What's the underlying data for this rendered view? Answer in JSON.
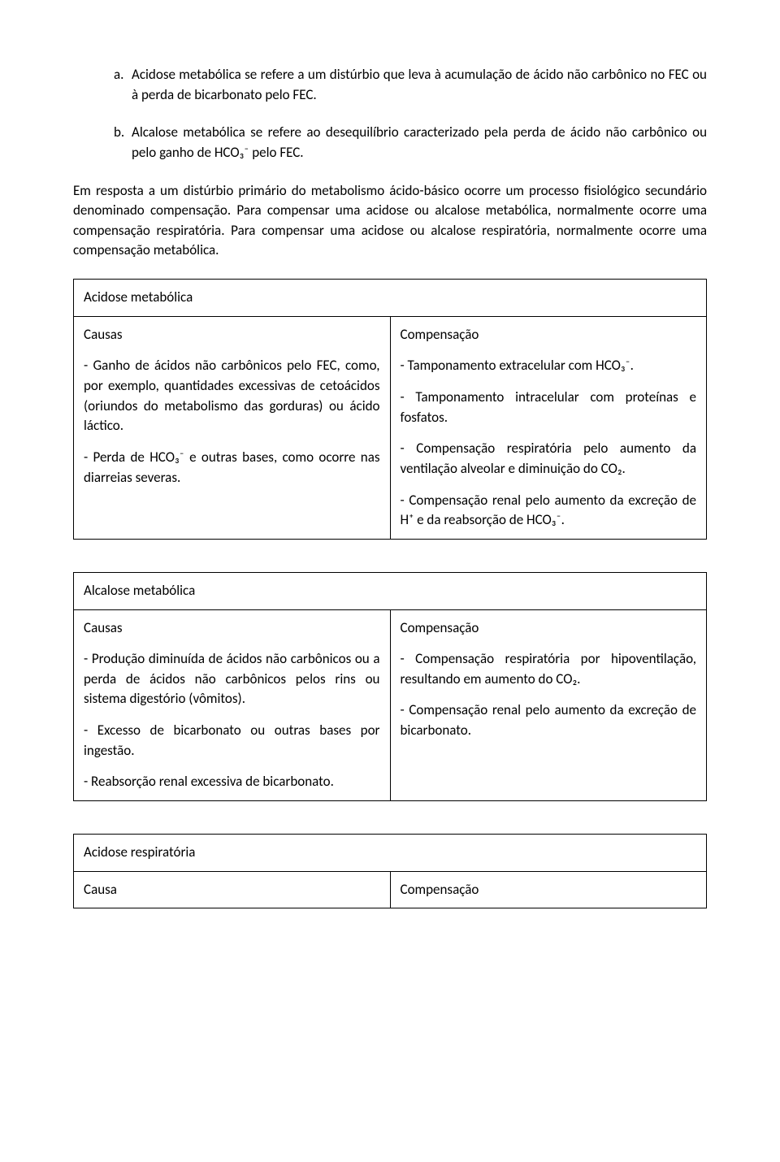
{
  "definitions": {
    "a": {
      "marker": "a.",
      "text": "Acidose metabólica se refere a um distúrbio que leva à acumulação de ácido não carbônico no FEC ou à perda de bicarbonato pelo FEC."
    },
    "b": {
      "marker": "b.",
      "text": "Alcalose metabólica se refere ao desequilíbrio caracterizado pela perda de ácido não carbônico ou pelo ganho de HCO₃⁻ pelo FEC."
    }
  },
  "intro": "Em resposta a um distúrbio primário do metabolismo ácido-básico ocorre um processo fisiológico secundário denominado compensação. Para compensar uma acidose ou alcalose metabólica, normalmente ocorre uma compensação respiratória. Para compensar uma acidose ou alcalose respiratória, normalmente ocorre uma compensação metabólica.",
  "table1": {
    "title": "Acidose metabólica",
    "left_heading": "Causas",
    "left_items": [
      "- Ganho de ácidos não carbônicos pelo FEC, como, por exemplo, quantidades excessivas de cetoácidos (oriundos do metabolismo das gorduras) ou ácido láctico.",
      "- Perda de HCO₃⁻ e outras bases, como ocorre nas diarreias severas."
    ],
    "right_heading": "Compensação",
    "right_items": [
      "- Tamponamento extracelular com HCO₃⁻.",
      "- Tamponamento intracelular com proteínas e fosfatos.",
      "- Compensação respiratória pelo aumento da ventilação alveolar e diminuição do CO₂.",
      "- Compensação renal pelo aumento da excreção de H⁺ e da reabsorção de HCO₃⁻."
    ]
  },
  "table2": {
    "title": "Alcalose metabólica",
    "left_heading": "Causas",
    "left_items": [
      "- Produção diminuída de ácidos não carbônicos ou a perda de ácidos não carbônicos pelos rins ou sistema digestório (vômitos).",
      "- Excesso de bicarbonato ou outras bases por ingestão.",
      "- Reabsorção renal excessiva de bicarbonato."
    ],
    "right_heading": "Compensação",
    "right_items": [
      "- Compensação respiratória por hipoventilação, resultando em aumento do CO₂.",
      "- Compensação renal pelo aumento da excreção de bicarbonato."
    ]
  },
  "table3": {
    "title": "Acidose respiratória",
    "left_heading": "Causa",
    "right_heading": "Compensação"
  }
}
